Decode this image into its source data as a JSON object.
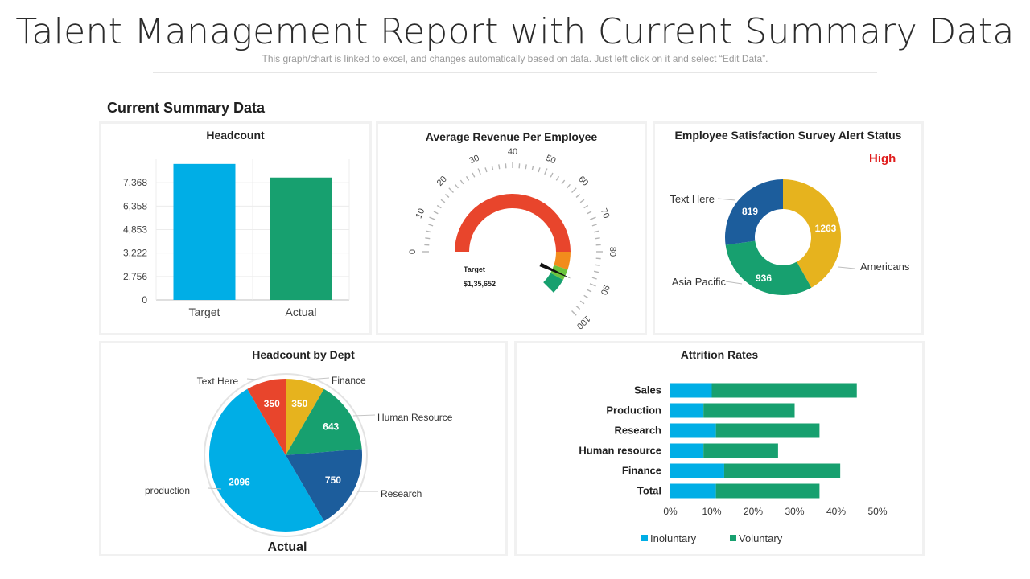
{
  "header": {
    "title": "Talent Management Report with Current Summary Data",
    "subtitle": "This graph/chart is linked to excel, and changes automatically based on data. Just left click on it and select “Edit Data”.",
    "section": "Current Summary Data"
  },
  "colors": {
    "blue": "#00aee6",
    "green": "#17a06f",
    "navy": "#1c5d9c",
    "gold": "#e6b31e",
    "orange": "#f28c1c",
    "red": "#e8452c",
    "lime": "#6cc43e",
    "alert": "#e01b1b"
  },
  "chart_data": [
    {
      "type": "bar",
      "title": "Headcount",
      "categories": [
        "Target",
        "Actual"
      ],
      "values": [
        7000,
        6300
      ],
      "ytick_labels": [
        "0",
        "2,756",
        "3,222",
        "4,853",
        "6,358",
        "7,368"
      ]
    },
    {
      "type": "gauge",
      "title": "Average Revenue Per Employee",
      "ticks": [
        "0",
        "10",
        "20",
        "30",
        "40",
        "50",
        "60",
        "70",
        "80",
        "90",
        "100"
      ],
      "segments": [
        {
          "color": "red",
          "from": 0,
          "to": 80
        },
        {
          "color": "orange",
          "from": 80,
          "to": 88
        },
        {
          "color": "lime",
          "from": 88,
          "to": 93
        },
        {
          "color": "green",
          "from": 93,
          "to": 100
        }
      ],
      "needle": 91,
      "target_label": "Target",
      "target_value": "$1,35,652"
    },
    {
      "type": "pie",
      "subtype": "donut",
      "title": "Employee Satisfaction Survey Alert Status",
      "status": "High",
      "slices": [
        {
          "label": "Americans",
          "value": 1263,
          "color": "gold"
        },
        {
          "label": "Asia Pacific",
          "value": 936,
          "color": "green"
        },
        {
          "label": "Text Here",
          "value": 819,
          "color": "navy"
        }
      ]
    },
    {
      "type": "pie",
      "title": "Headcount by Dept",
      "xlabel": "Actual",
      "slices": [
        {
          "label": "Finance",
          "value": 350,
          "color": "gold"
        },
        {
          "label": "Human Resource",
          "value": 643,
          "color": "green"
        },
        {
          "label": "Research",
          "value": 750,
          "color": "navy"
        },
        {
          "label": "production",
          "value": 2096,
          "color": "blue"
        },
        {
          "label": "Text Here",
          "value": 350,
          "color": "red"
        }
      ]
    },
    {
      "type": "bar",
      "subtype": "stacked-horizontal",
      "title": "Attrition Rates",
      "categories": [
        "Sales",
        "Production",
        "Research",
        "Human resource",
        "Finance",
        "Total"
      ],
      "series": [
        {
          "name": "Inoluntary",
          "values": [
            10,
            8,
            11,
            8,
            13,
            11
          ],
          "color": "blue"
        },
        {
          "name": "Voluntary",
          "values": [
            35,
            22,
            25,
            18,
            28,
            25
          ],
          "color": "green"
        }
      ],
      "xlim": [
        0,
        50
      ],
      "xtick_labels": [
        "0%",
        "10%",
        "20%",
        "30%",
        "40%",
        "50%"
      ]
    }
  ]
}
